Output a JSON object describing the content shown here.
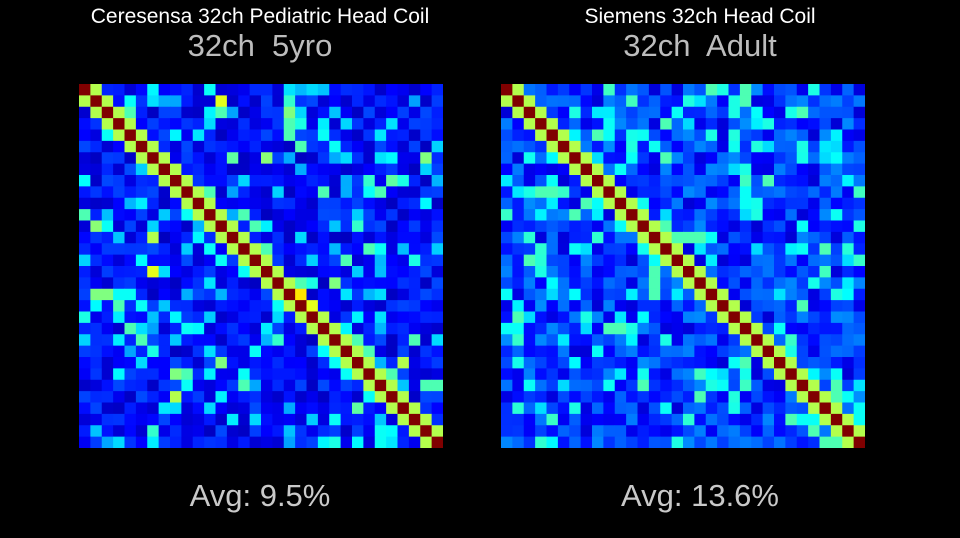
{
  "chart_data": [
    {
      "type": "heatmap",
      "title": "Ceresensa 32ch Pediatric Head Coil",
      "subtitle": "32ch  5yro",
      "caption": "Avg: 9.5%",
      "n": 32,
      "colormap": "jet",
      "vmin": 0,
      "vmax": 1,
      "base_level": 0.18,
      "diagonal_value": 1.0,
      "near_diagonal_value": 0.55,
      "highlights": [
        [
          0,
          1,
          0.5
        ],
        [
          1,
          2,
          0.45
        ],
        [
          2,
          3,
          0.5
        ],
        [
          2,
          4,
          0.45
        ],
        [
          3,
          4,
          0.4
        ],
        [
          4,
          5,
          0.45
        ],
        [
          5,
          6,
          0.35
        ],
        [
          1,
          12,
          0.6
        ],
        [
          2,
          12,
          0.45
        ],
        [
          2,
          18,
          0.5
        ],
        [
          3,
          18,
          0.45
        ],
        [
          4,
          18,
          0.45
        ],
        [
          5,
          19,
          0.45
        ],
        [
          9,
          21,
          0.45
        ],
        [
          11,
          14,
          0.45
        ],
        [
          6,
          30,
          0.5
        ],
        [
          9,
          26,
          0.45
        ],
        [
          8,
          27,
          0.45
        ],
        [
          9,
          10,
          0.55
        ],
        [
          10,
          11,
          0.45
        ],
        [
          9,
          11,
          0.45
        ],
        [
          14,
          15,
          0.45
        ],
        [
          14,
          16,
          0.45
        ],
        [
          15,
          16,
          0.45
        ],
        [
          15,
          23,
          0.45
        ],
        [
          17,
          22,
          0.5
        ],
        [
          18,
          19,
          0.65
        ],
        [
          17,
          19,
          0.45
        ],
        [
          19,
          20,
          0.6
        ],
        [
          17,
          20,
          0.4
        ],
        [
          22,
          24,
          0.45
        ],
        [
          23,
          25,
          0.45
        ],
        [
          24,
          25,
          0.5
        ],
        [
          26,
          27,
          0.45
        ],
        [
          27,
          28,
          0.45
        ],
        [
          28,
          29,
          0.5
        ],
        [
          29,
          30,
          0.5
        ],
        [
          30,
          31,
          0.55
        ],
        [
          26,
          31,
          0.45
        ],
        [
          26,
          30,
          0.45
        ],
        [
          25,
          27,
          0.45
        ],
        [
          24,
          28,
          0.55
        ],
        [
          22,
          29,
          0.45
        ],
        [
          13,
          6,
          0.55
        ],
        [
          16,
          6,
          0.6
        ],
        [
          18,
          1,
          0.5
        ],
        [
          18,
          2,
          0.5
        ],
        [
          19,
          3,
          0.45
        ],
        [
          21,
          4,
          0.45
        ],
        [
          23,
          6,
          0.4
        ],
        [
          25,
          8,
          0.5
        ],
        [
          25,
          9,
          0.45
        ],
        [
          27,
          8,
          0.55
        ],
        [
          31,
          22,
          0.4
        ],
        [
          12,
          15,
          0.45
        ],
        [
          11,
          0,
          0.45
        ],
        [
          20,
          0,
          0.4
        ],
        [
          22,
          5,
          0.45
        ],
        [
          24,
          12,
          0.5
        ],
        [
          26,
          14,
          0.45
        ],
        [
          20,
          21,
          0.45
        ],
        [
          14,
          25,
          0.45
        ],
        [
          15,
          29,
          0.4
        ],
        [
          8,
          28,
          0.4
        ],
        [
          3,
          19,
          0.4
        ]
      ]
    },
    {
      "type": "heatmap",
      "title": "Siemens 32ch Head Coil",
      "subtitle": "32ch  Adult",
      "caption": "Avg: 13.6%",
      "n": 32,
      "colormap": "jet",
      "vmin": 0,
      "vmax": 1,
      "base_level": 0.24,
      "diagonal_value": 1.0,
      "near_diagonal_value": 0.55,
      "highlights": [
        [
          0,
          18,
          0.45
        ],
        [
          0,
          21,
          0.45
        ],
        [
          1,
          21,
          0.45
        ],
        [
          1,
          20,
          0.4
        ],
        [
          2,
          20,
          0.4
        ],
        [
          3,
          14,
          0.45
        ],
        [
          4,
          8,
          0.45
        ],
        [
          6,
          14,
          0.45
        ],
        [
          7,
          21,
          0.4
        ],
        [
          9,
          2,
          0.4
        ],
        [
          9,
          3,
          0.45
        ],
        [
          9,
          4,
          0.45
        ],
        [
          10,
          7,
          0.45
        ],
        [
          11,
          6,
          0.45
        ],
        [
          12,
          14,
          0.45
        ],
        [
          13,
          15,
          0.45
        ],
        [
          13,
          16,
          0.45
        ],
        [
          13,
          17,
          0.45
        ],
        [
          14,
          28,
          0.45
        ],
        [
          15,
          2,
          0.45
        ],
        [
          16,
          13,
          0.45
        ],
        [
          16,
          3,
          0.4
        ],
        [
          17,
          13,
          0.45
        ],
        [
          18,
          13,
          0.45
        ],
        [
          19,
          26,
          0.45
        ],
        [
          20,
          1,
          0.45
        ],
        [
          20,
          7,
          0.4
        ],
        [
          21,
          9,
          0.45
        ],
        [
          21,
          10,
          0.45
        ],
        [
          21,
          11,
          0.4
        ],
        [
          22,
          14,
          0.4
        ],
        [
          23,
          22,
          0.45
        ],
        [
          24,
          21,
          0.45
        ],
        [
          24,
          25,
          0.45
        ],
        [
          25,
          26,
          0.5
        ],
        [
          26,
          27,
          0.45
        ],
        [
          27,
          28,
          0.45
        ],
        [
          28,
          29,
          0.5
        ],
        [
          29,
          30,
          0.5
        ],
        [
          30,
          31,
          0.55
        ],
        [
          27,
          29,
          0.45
        ],
        [
          26,
          29,
          0.45
        ],
        [
          28,
          27,
          0.45
        ],
        [
          29,
          25,
          0.45
        ],
        [
          30,
          27,
          0.45
        ],
        [
          31,
          28,
          0.45
        ],
        [
          31,
          29,
          0.45
        ],
        [
          26,
          12,
          0.45
        ],
        [
          27,
          17,
          0.45
        ],
        [
          28,
          6,
          0.4
        ],
        [
          4,
          18,
          0.4
        ],
        [
          8,
          23,
          0.45
        ],
        [
          5,
          26,
          0.4
        ],
        [
          2,
          26,
          0.45
        ],
        [
          6,
          7,
          0.5
        ],
        [
          7,
          8,
          0.45
        ],
        [
          10,
          11,
          0.45
        ],
        [
          11,
          12,
          0.5
        ],
        [
          12,
          13,
          0.5
        ],
        [
          13,
          14,
          0.45
        ],
        [
          14,
          15,
          0.45
        ],
        [
          15,
          16,
          0.45
        ],
        [
          17,
          18,
          0.45
        ],
        [
          18,
          19,
          0.45
        ],
        [
          19,
          20,
          0.45
        ]
      ]
    }
  ]
}
